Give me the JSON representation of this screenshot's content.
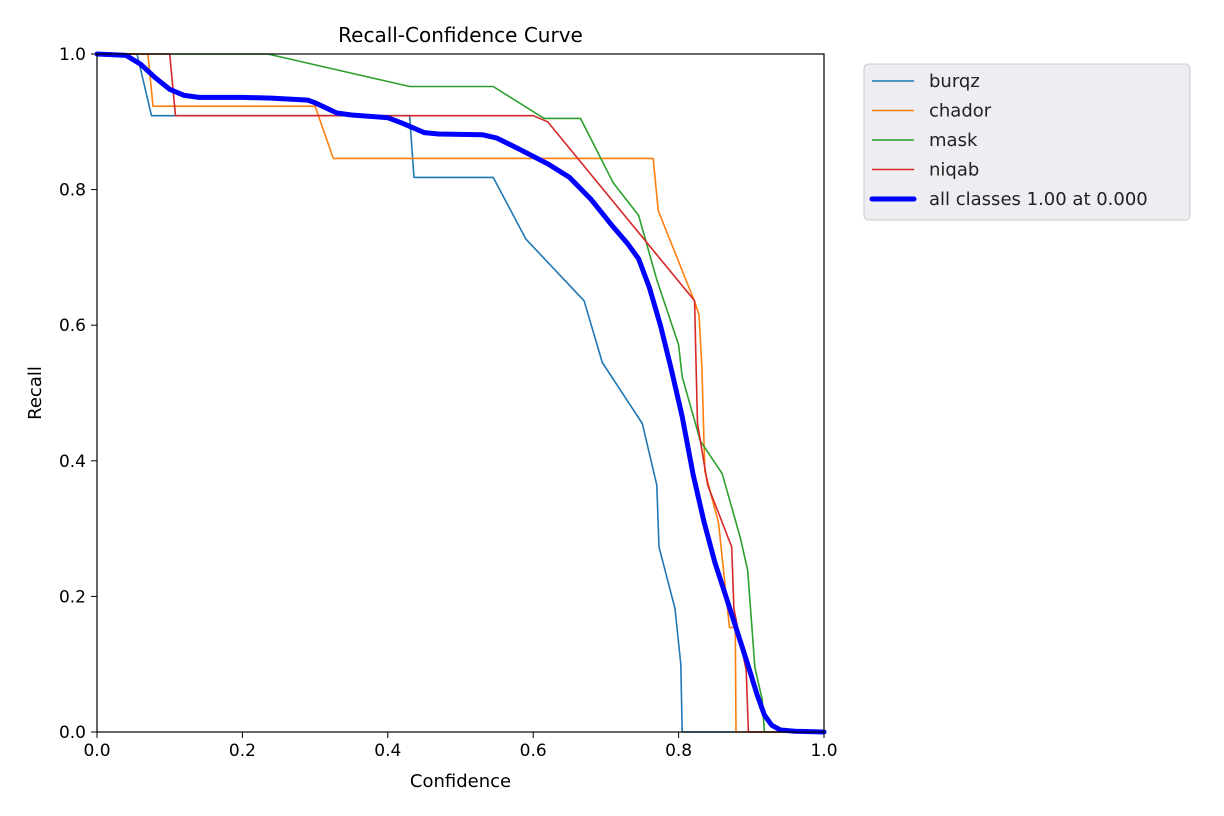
{
  "chart_data": {
    "type": "line",
    "title": "Recall-Confidence Curve",
    "xlabel": "Confidence",
    "ylabel": "Recall",
    "xlim": [
      0,
      1
    ],
    "ylim": [
      0,
      1
    ],
    "xticks": [
      "0.0",
      "0.2",
      "0.4",
      "0.6",
      "0.8",
      "1.0"
    ],
    "yticks": [
      "0.0",
      "0.2",
      "0.4",
      "0.6",
      "0.8",
      "1.0"
    ],
    "grid": false,
    "legend_position": "outside-top-right",
    "series": [
      {
        "name": "burqz",
        "color": "#1f77b4",
        "emphasis": false,
        "points": [
          [
            0,
            1.0
          ],
          [
            0.055,
            1.0
          ],
          [
            0.075,
            0.909
          ],
          [
            0.43,
            0.909
          ],
          [
            0.436,
            0.818
          ],
          [
            0.545,
            0.818
          ],
          [
            0.59,
            0.727
          ],
          [
            0.67,
            0.636
          ],
          [
            0.695,
            0.545
          ],
          [
            0.75,
            0.455
          ],
          [
            0.77,
            0.364
          ],
          [
            0.773,
            0.273
          ],
          [
            0.795,
            0.182
          ],
          [
            0.803,
            0.1
          ],
          [
            0.805,
            0.0
          ],
          [
            1.0,
            0.0
          ]
        ]
      },
      {
        "name": "chador",
        "color": "#ff7f0e",
        "emphasis": false,
        "points": [
          [
            0,
            1.0
          ],
          [
            0.07,
            1.0
          ],
          [
            0.077,
            0.923
          ],
          [
            0.3,
            0.923
          ],
          [
            0.325,
            0.846
          ],
          [
            0.765,
            0.846
          ],
          [
            0.772,
            0.769
          ],
          [
            0.822,
            0.635
          ],
          [
            0.828,
            0.615
          ],
          [
            0.832,
            0.538
          ],
          [
            0.836,
            0.385
          ],
          [
            0.855,
            0.308
          ],
          [
            0.87,
            0.154
          ],
          [
            0.878,
            0.154
          ],
          [
            0.879,
            0.0
          ],
          [
            1.0,
            0.0
          ]
        ]
      },
      {
        "name": "mask",
        "color": "#2ca02c",
        "emphasis": false,
        "points": [
          [
            0,
            1.0
          ],
          [
            0.235,
            1.0
          ],
          [
            0.43,
            0.952
          ],
          [
            0.545,
            0.952
          ],
          [
            0.615,
            0.905
          ],
          [
            0.665,
            0.905
          ],
          [
            0.71,
            0.81
          ],
          [
            0.745,
            0.762
          ],
          [
            0.77,
            0.667
          ],
          [
            0.8,
            0.571
          ],
          [
            0.805,
            0.524
          ],
          [
            0.83,
            0.429
          ],
          [
            0.86,
            0.381
          ],
          [
            0.885,
            0.286
          ],
          [
            0.895,
            0.238
          ],
          [
            0.905,
            0.095
          ],
          [
            0.915,
            0.048
          ],
          [
            0.918,
            0.0
          ],
          [
            1.0,
            0.0
          ]
        ]
      },
      {
        "name": "niqab",
        "color": "#d62728",
        "emphasis": false,
        "points": [
          [
            0,
            1.0
          ],
          [
            0.1,
            1.0
          ],
          [
            0.108,
            0.909
          ],
          [
            0.6,
            0.909
          ],
          [
            0.62,
            0.9
          ],
          [
            0.822,
            0.636
          ],
          [
            0.824,
            0.545
          ],
          [
            0.826,
            0.455
          ],
          [
            0.84,
            0.364
          ],
          [
            0.873,
            0.273
          ],
          [
            0.876,
            0.182
          ],
          [
            0.893,
            0.091
          ],
          [
            0.896,
            0.0
          ],
          [
            1.0,
            0.0
          ]
        ]
      },
      {
        "name": "all classes 1.00 at 0.000",
        "color": "#0000ff",
        "emphasis": true,
        "points": [
          [
            0,
            1.0
          ],
          [
            0.04,
            0.998
          ],
          [
            0.06,
            0.985
          ],
          [
            0.08,
            0.965
          ],
          [
            0.1,
            0.948
          ],
          [
            0.12,
            0.939
          ],
          [
            0.14,
            0.936
          ],
          [
            0.2,
            0.936
          ],
          [
            0.24,
            0.935
          ],
          [
            0.29,
            0.932
          ],
          [
            0.3,
            0.928
          ],
          [
            0.33,
            0.913
          ],
          [
            0.35,
            0.91
          ],
          [
            0.4,
            0.906
          ],
          [
            0.42,
            0.898
          ],
          [
            0.45,
            0.884
          ],
          [
            0.47,
            0.882
          ],
          [
            0.53,
            0.881
          ],
          [
            0.55,
            0.876
          ],
          [
            0.58,
            0.86
          ],
          [
            0.62,
            0.838
          ],
          [
            0.65,
            0.818
          ],
          [
            0.68,
            0.785
          ],
          [
            0.71,
            0.745
          ],
          [
            0.73,
            0.72
          ],
          [
            0.745,
            0.698
          ],
          [
            0.76,
            0.655
          ],
          [
            0.775,
            0.6
          ],
          [
            0.79,
            0.535
          ],
          [
            0.805,
            0.465
          ],
          [
            0.82,
            0.38
          ],
          [
            0.835,
            0.31
          ],
          [
            0.85,
            0.25
          ],
          [
            0.865,
            0.2
          ],
          [
            0.88,
            0.15
          ],
          [
            0.895,
            0.1
          ],
          [
            0.908,
            0.055
          ],
          [
            0.918,
            0.025
          ],
          [
            0.928,
            0.01
          ],
          [
            0.94,
            0.003
          ],
          [
            0.96,
            0.001
          ],
          [
            1.0,
            0.0
          ]
        ]
      }
    ]
  }
}
